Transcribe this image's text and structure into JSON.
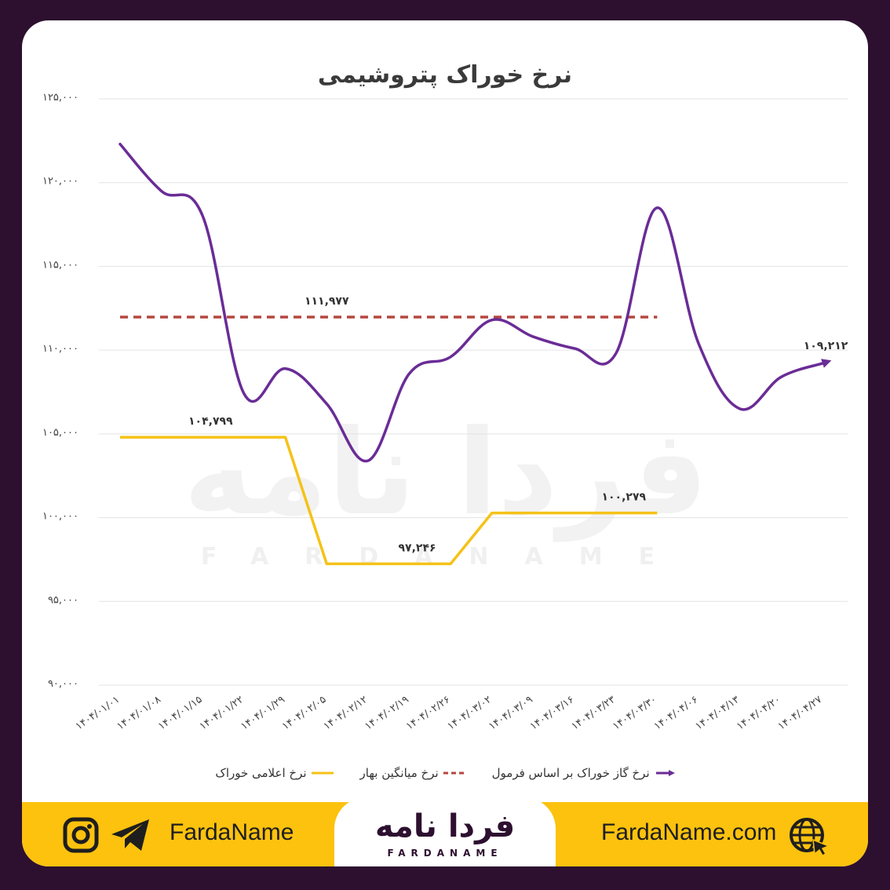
{
  "chart_data": {
    "type": "line",
    "title": "نرخ خوراک پتروشیمی",
    "categories": [
      "۱۴۰۴/۰۱/۰۱",
      "۱۴۰۴/۰۱/۰۸",
      "۱۴۰۴/۰۱/۱۵",
      "۱۴۰۴/۰۱/۲۲",
      "۱۴۰۴/۰۱/۲۹",
      "۱۴۰۴/۰۲/۰۵",
      "۱۴۰۴/۰۲/۱۲",
      "۱۴۰۴/۰۲/۱۹",
      "۱۴۰۴/۰۲/۲۶",
      "۱۴۰۴/۰۳/۰۲",
      "۱۴۰۴/۰۳/۰۹",
      "۱۴۰۴/۰۳/۱۶",
      "۱۴۰۴/۰۳/۲۳",
      "۱۴۰۴/۰۳/۳۰",
      "۱۴۰۴/۰۴/۰۶",
      "۱۴۰۴/۰۴/۱۳",
      "۱۴۰۴/۰۴/۲۰",
      "۱۴۰۴/۰۴/۲۷"
    ],
    "ylim": [
      90000,
      125000
    ],
    "yticks": [
      90000,
      95000,
      100000,
      105000,
      110000,
      115000,
      120000,
      125000
    ],
    "ytick_labels": [
      "۹۰,۰۰۰",
      "۹۵,۰۰۰",
      "۱۰۰,۰۰۰",
      "۱۰۵,۰۰۰",
      "۱۱۰,۰۰۰",
      "۱۱۵,۰۰۰",
      "۱۲۰,۰۰۰",
      "۱۲۵,۰۰۰"
    ],
    "grid": true,
    "legend_position": "bottom",
    "series": [
      {
        "name": "نرخ گاز خوراک بر اساس فرمول",
        "color": "#6a2c96",
        "style": "solid",
        "values": [
          122300,
          119500,
          118000,
          107400,
          108900,
          106800,
          103400,
          108600,
          109600,
          111800,
          110800,
          110100,
          109800,
          118500,
          110400,
          106500,
          108400,
          109212
        ],
        "end_label": "۱۰۹,۲۱۲"
      },
      {
        "name": "نرخ میانگین بهار",
        "color": "#b5473f",
        "style": "dashed",
        "x_range": [
          0,
          13
        ],
        "value": 111977,
        "label": "۱۱۱,۹۷۷"
      },
      {
        "name": "نرخ اعلامی خوراک",
        "color": "#f5c218",
        "style": "solid",
        "values": [
          104799,
          104799,
          104799,
          104799,
          104799,
          97246,
          97246,
          97246,
          97246,
          100279,
          100279,
          100279,
          100279,
          100279,
          null,
          null,
          null,
          null
        ],
        "labels": [
          {
            "index": 2,
            "text": "۱۰۴,۷۹۹"
          },
          {
            "index": 7,
            "text": "۹۷,۲۴۶"
          },
          {
            "index": 12,
            "text": "۱۰۰,۲۷۹"
          }
        ]
      }
    ]
  },
  "watermark": {
    "main": "فردا نامه",
    "sub": "FARDANAME"
  },
  "footer": {
    "left_handle": "FardaName",
    "right_site": "FardaName.com",
    "logo_main": "فردا نامه",
    "logo_sub": "FARDANAME",
    "icons": [
      "instagram-icon",
      "telegram-icon",
      "globe-icon"
    ]
  }
}
